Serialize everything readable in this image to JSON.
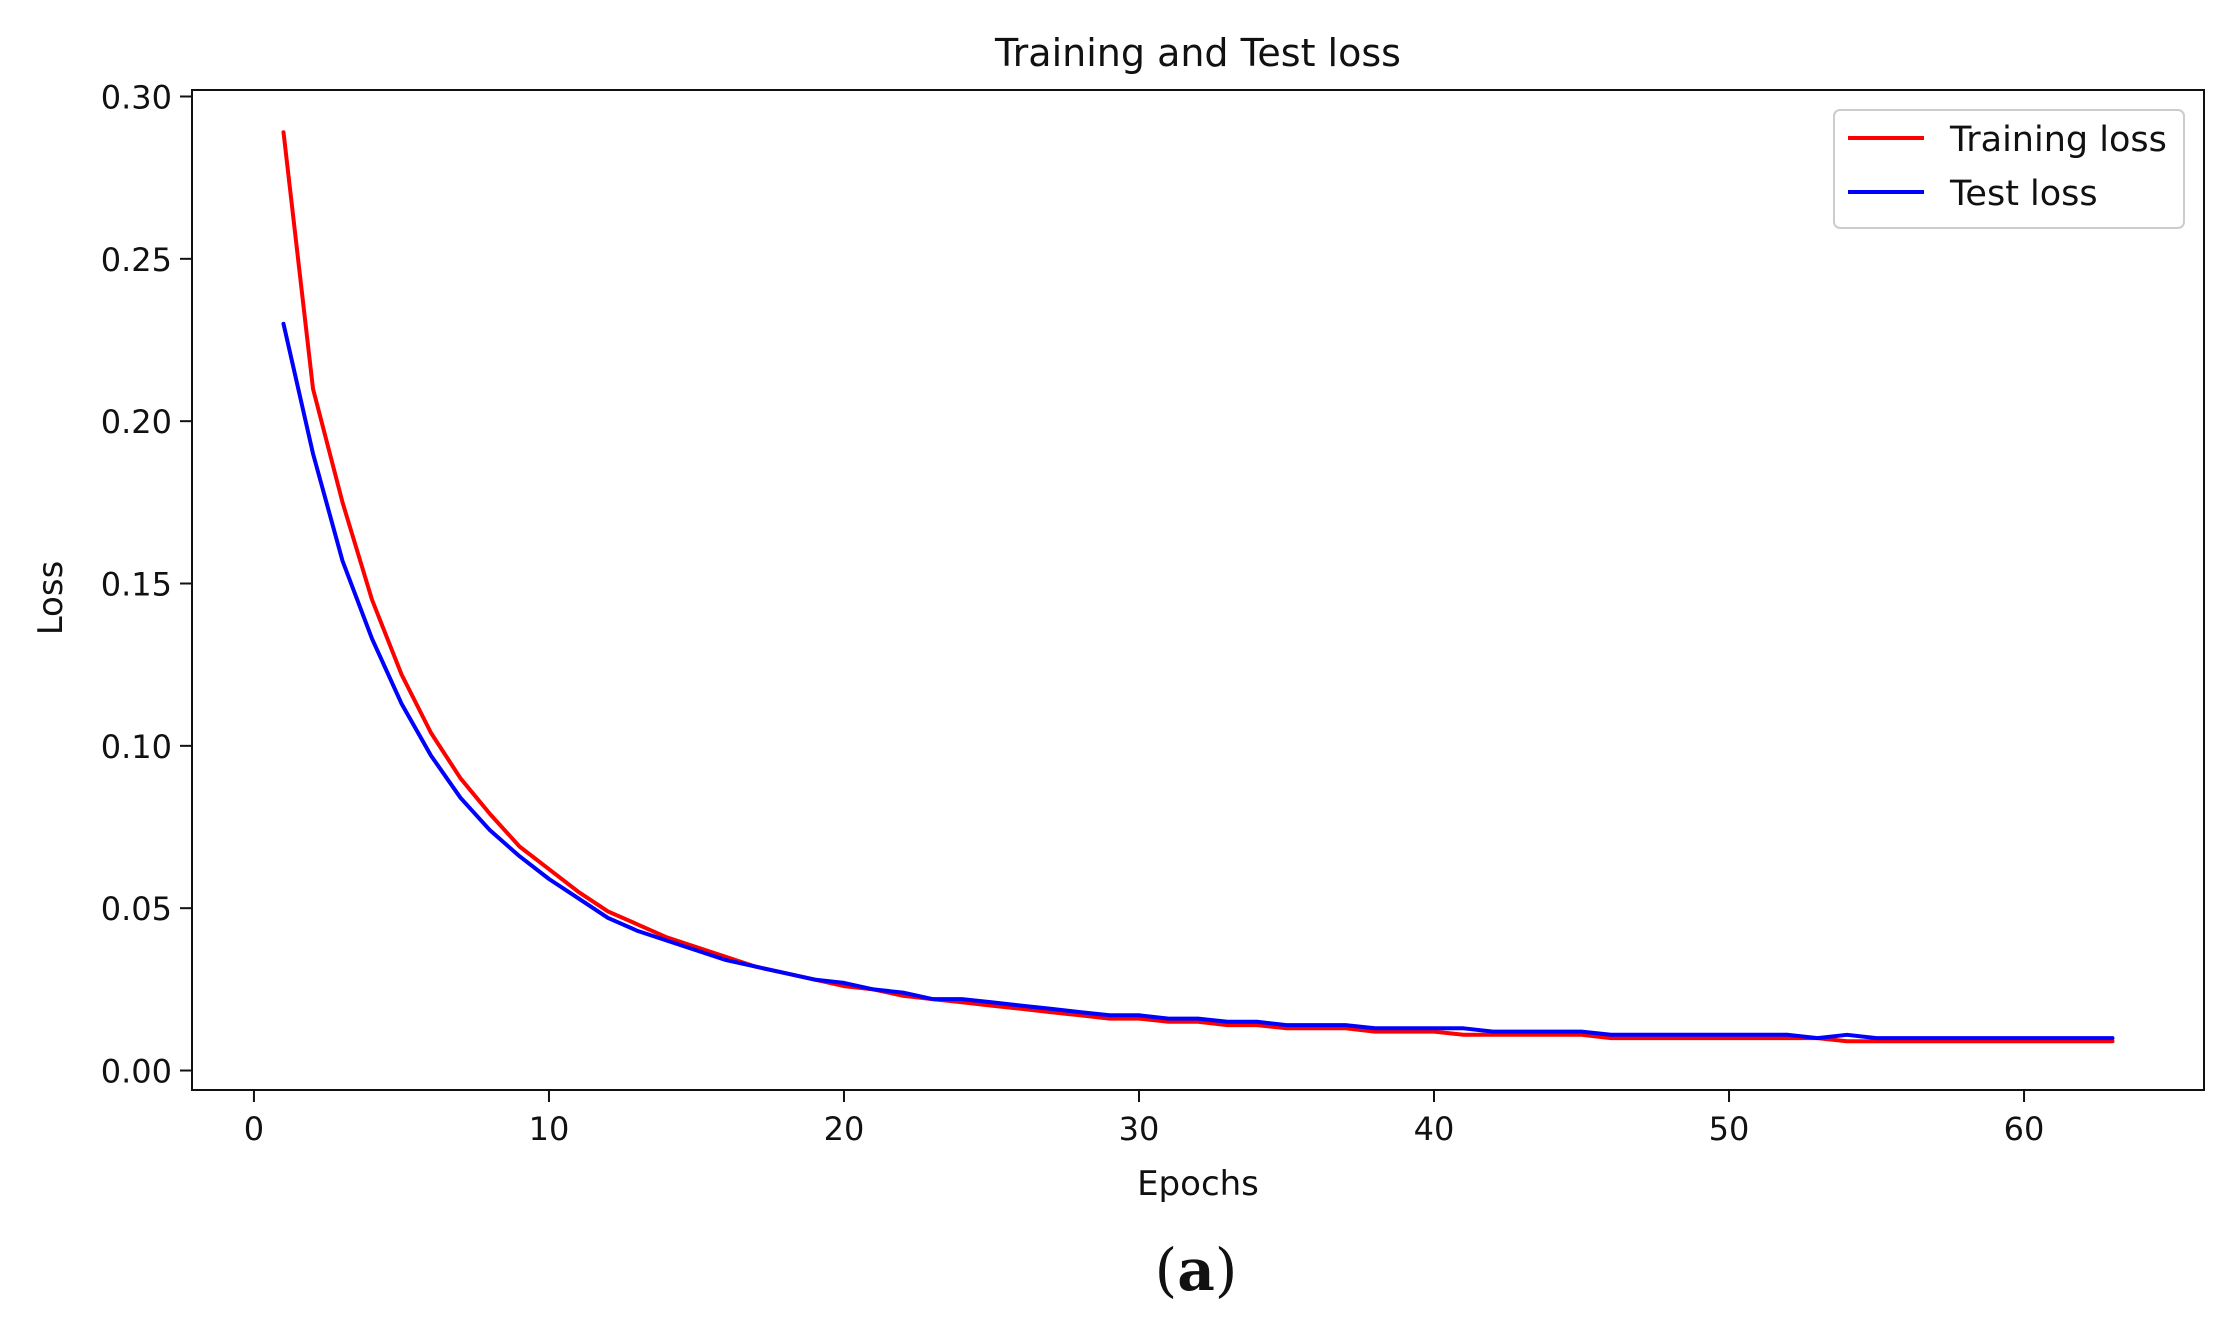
{
  "chart_data": {
    "type": "line",
    "title": "Training and Test loss",
    "xlabel": "Epochs",
    "ylabel": "Loss",
    "xlim": [
      -2.1,
      66.1
    ],
    "ylim": [
      -0.006,
      0.302
    ],
    "xticks": [
      0,
      10,
      20,
      30,
      40,
      50,
      60
    ],
    "xtick_labels": [
      "0",
      "10",
      "20",
      "30",
      "40",
      "50",
      "60"
    ],
    "yticks": [
      0.0,
      0.05,
      0.1,
      0.15,
      0.2,
      0.25,
      0.3
    ],
    "ytick_labels": [
      "0.00",
      "0.05",
      "0.10",
      "0.15",
      "0.20",
      "0.25",
      "0.30"
    ],
    "grid": false,
    "legend_position": "top-right",
    "x": [
      1,
      2,
      3,
      4,
      5,
      6,
      7,
      8,
      9,
      10,
      11,
      12,
      13,
      14,
      15,
      16,
      17,
      18,
      19,
      20,
      21,
      22,
      23,
      24,
      25,
      26,
      27,
      28,
      29,
      30,
      31,
      32,
      33,
      34,
      35,
      36,
      37,
      38,
      39,
      40,
      41,
      42,
      43,
      44,
      45,
      46,
      47,
      48,
      49,
      50,
      51,
      52,
      53,
      54,
      55,
      56,
      57,
      58,
      59,
      60,
      61,
      62,
      63
    ],
    "series": [
      {
        "name": "Training loss",
        "color": "#ff0000",
        "values": [
          0.289,
          0.21,
          0.175,
          0.145,
          0.122,
          0.104,
          0.09,
          0.079,
          0.069,
          0.062,
          0.055,
          0.049,
          0.045,
          0.041,
          0.038,
          0.035,
          0.032,
          0.03,
          0.028,
          0.026,
          0.025,
          0.023,
          0.022,
          0.021,
          0.02,
          0.019,
          0.018,
          0.017,
          0.016,
          0.016,
          0.015,
          0.015,
          0.014,
          0.014,
          0.013,
          0.013,
          0.013,
          0.012,
          0.012,
          0.012,
          0.011,
          0.011,
          0.011,
          0.011,
          0.011,
          0.01,
          0.01,
          0.01,
          0.01,
          0.01,
          0.01,
          0.01,
          0.01,
          0.009,
          0.009,
          0.009,
          0.009,
          0.009,
          0.009,
          0.009,
          0.009,
          0.009,
          0.009
        ]
      },
      {
        "name": "Test loss",
        "color": "#0000ff",
        "values": [
          0.23,
          0.19,
          0.157,
          0.133,
          0.113,
          0.097,
          0.084,
          0.074,
          0.066,
          0.059,
          0.053,
          0.047,
          0.043,
          0.04,
          0.037,
          0.034,
          0.032,
          0.03,
          0.028,
          0.027,
          0.025,
          0.024,
          0.022,
          0.022,
          0.021,
          0.02,
          0.019,
          0.018,
          0.017,
          0.017,
          0.016,
          0.016,
          0.015,
          0.015,
          0.014,
          0.014,
          0.014,
          0.013,
          0.013,
          0.013,
          0.013,
          0.012,
          0.012,
          0.012,
          0.012,
          0.011,
          0.011,
          0.011,
          0.011,
          0.011,
          0.011,
          0.011,
          0.01,
          0.011,
          0.01,
          0.01,
          0.01,
          0.01,
          0.01,
          0.01,
          0.01,
          0.01,
          0.01
        ]
      }
    ]
  },
  "caption": {
    "open": "(",
    "letter": "a",
    "close": ")"
  }
}
